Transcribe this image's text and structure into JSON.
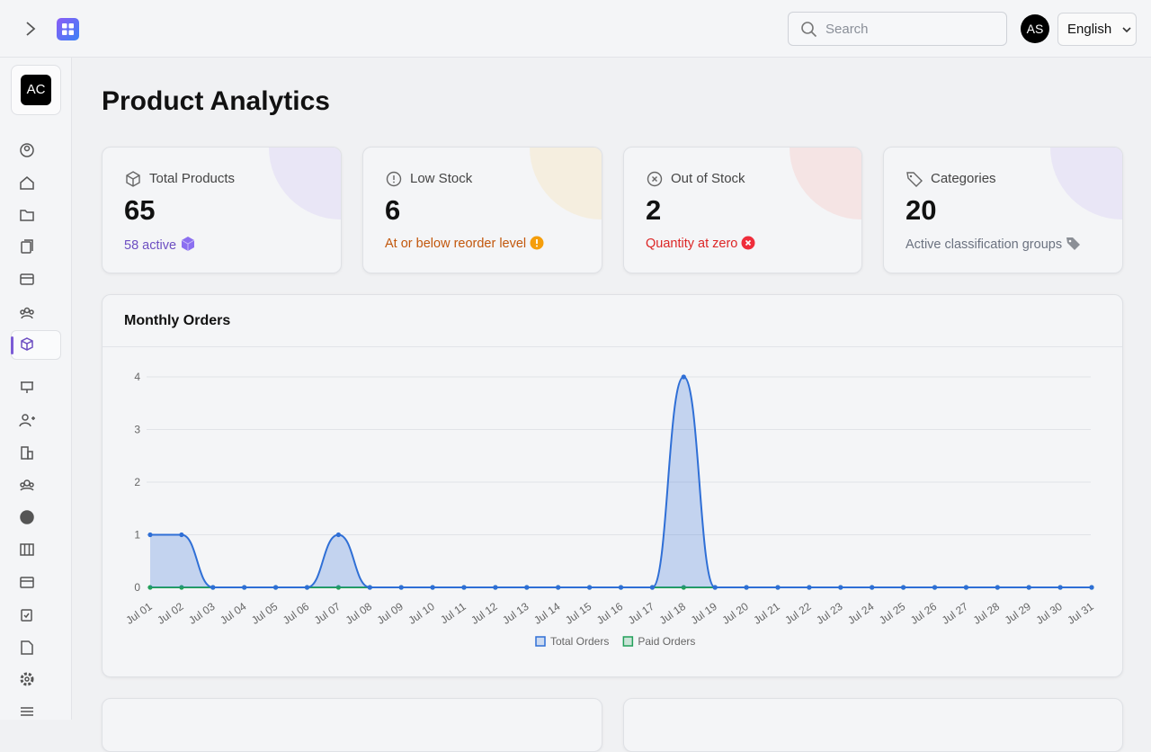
{
  "topbar": {
    "search_placeholder": "Search",
    "avatar": "AS",
    "language": "English"
  },
  "sidebar": {
    "org": "AC"
  },
  "page": {
    "title": "Product Analytics"
  },
  "cards": [
    {
      "label": "Total Products",
      "value": 65,
      "note": "58 active"
    },
    {
      "label": "Low Stock",
      "value": 6,
      "note": "At or below reorder level"
    },
    {
      "label": "Out of Stock",
      "value": 2,
      "note": "Quantity at zero"
    },
    {
      "label": "Categories",
      "value": 20,
      "note": "Active classification groups"
    }
  ],
  "chart_data": {
    "type": "line",
    "title": "Monthly Orders",
    "categories": [
      "Jul 01",
      "Jul 02",
      "Jul 03",
      "Jul 04",
      "Jul 05",
      "Jul 06",
      "Jul 07",
      "Jul 08",
      "Jul 09",
      "Jul 10",
      "Jul 11",
      "Jul 12",
      "Jul 13",
      "Jul 14",
      "Jul 15",
      "Jul 16",
      "Jul 17",
      "Jul 18",
      "Jul 19",
      "Jul 20",
      "Jul 21",
      "Jul 22",
      "Jul 23",
      "Jul 24",
      "Jul 25",
      "Jul 26",
      "Jul 27",
      "Jul 28",
      "Jul 29",
      "Jul 30",
      "Jul 31"
    ],
    "series": [
      {
        "name": "Total Orders",
        "color": "#2f6fd6",
        "values": [
          1,
          1,
          0,
          0,
          0,
          0,
          1,
          0,
          0,
          0,
          0,
          0,
          0,
          0,
          0,
          0,
          0,
          4,
          0,
          0,
          0,
          0,
          0,
          0,
          0,
          0,
          0,
          0,
          0,
          0,
          0
        ]
      },
      {
        "name": "Paid Orders",
        "color": "#22a05a",
        "values": [
          0,
          0,
          0,
          0,
          0,
          0,
          0,
          0,
          0,
          0,
          0,
          0,
          0,
          0,
          0,
          0,
          0,
          0,
          0,
          0,
          0,
          0,
          0,
          0,
          0,
          0,
          0,
          0,
          0,
          0,
          0
        ]
      }
    ],
    "ylim": [
      0,
      4
    ],
    "yticks": [
      0,
      1,
      2,
      3,
      4
    ],
    "grid": true
  }
}
